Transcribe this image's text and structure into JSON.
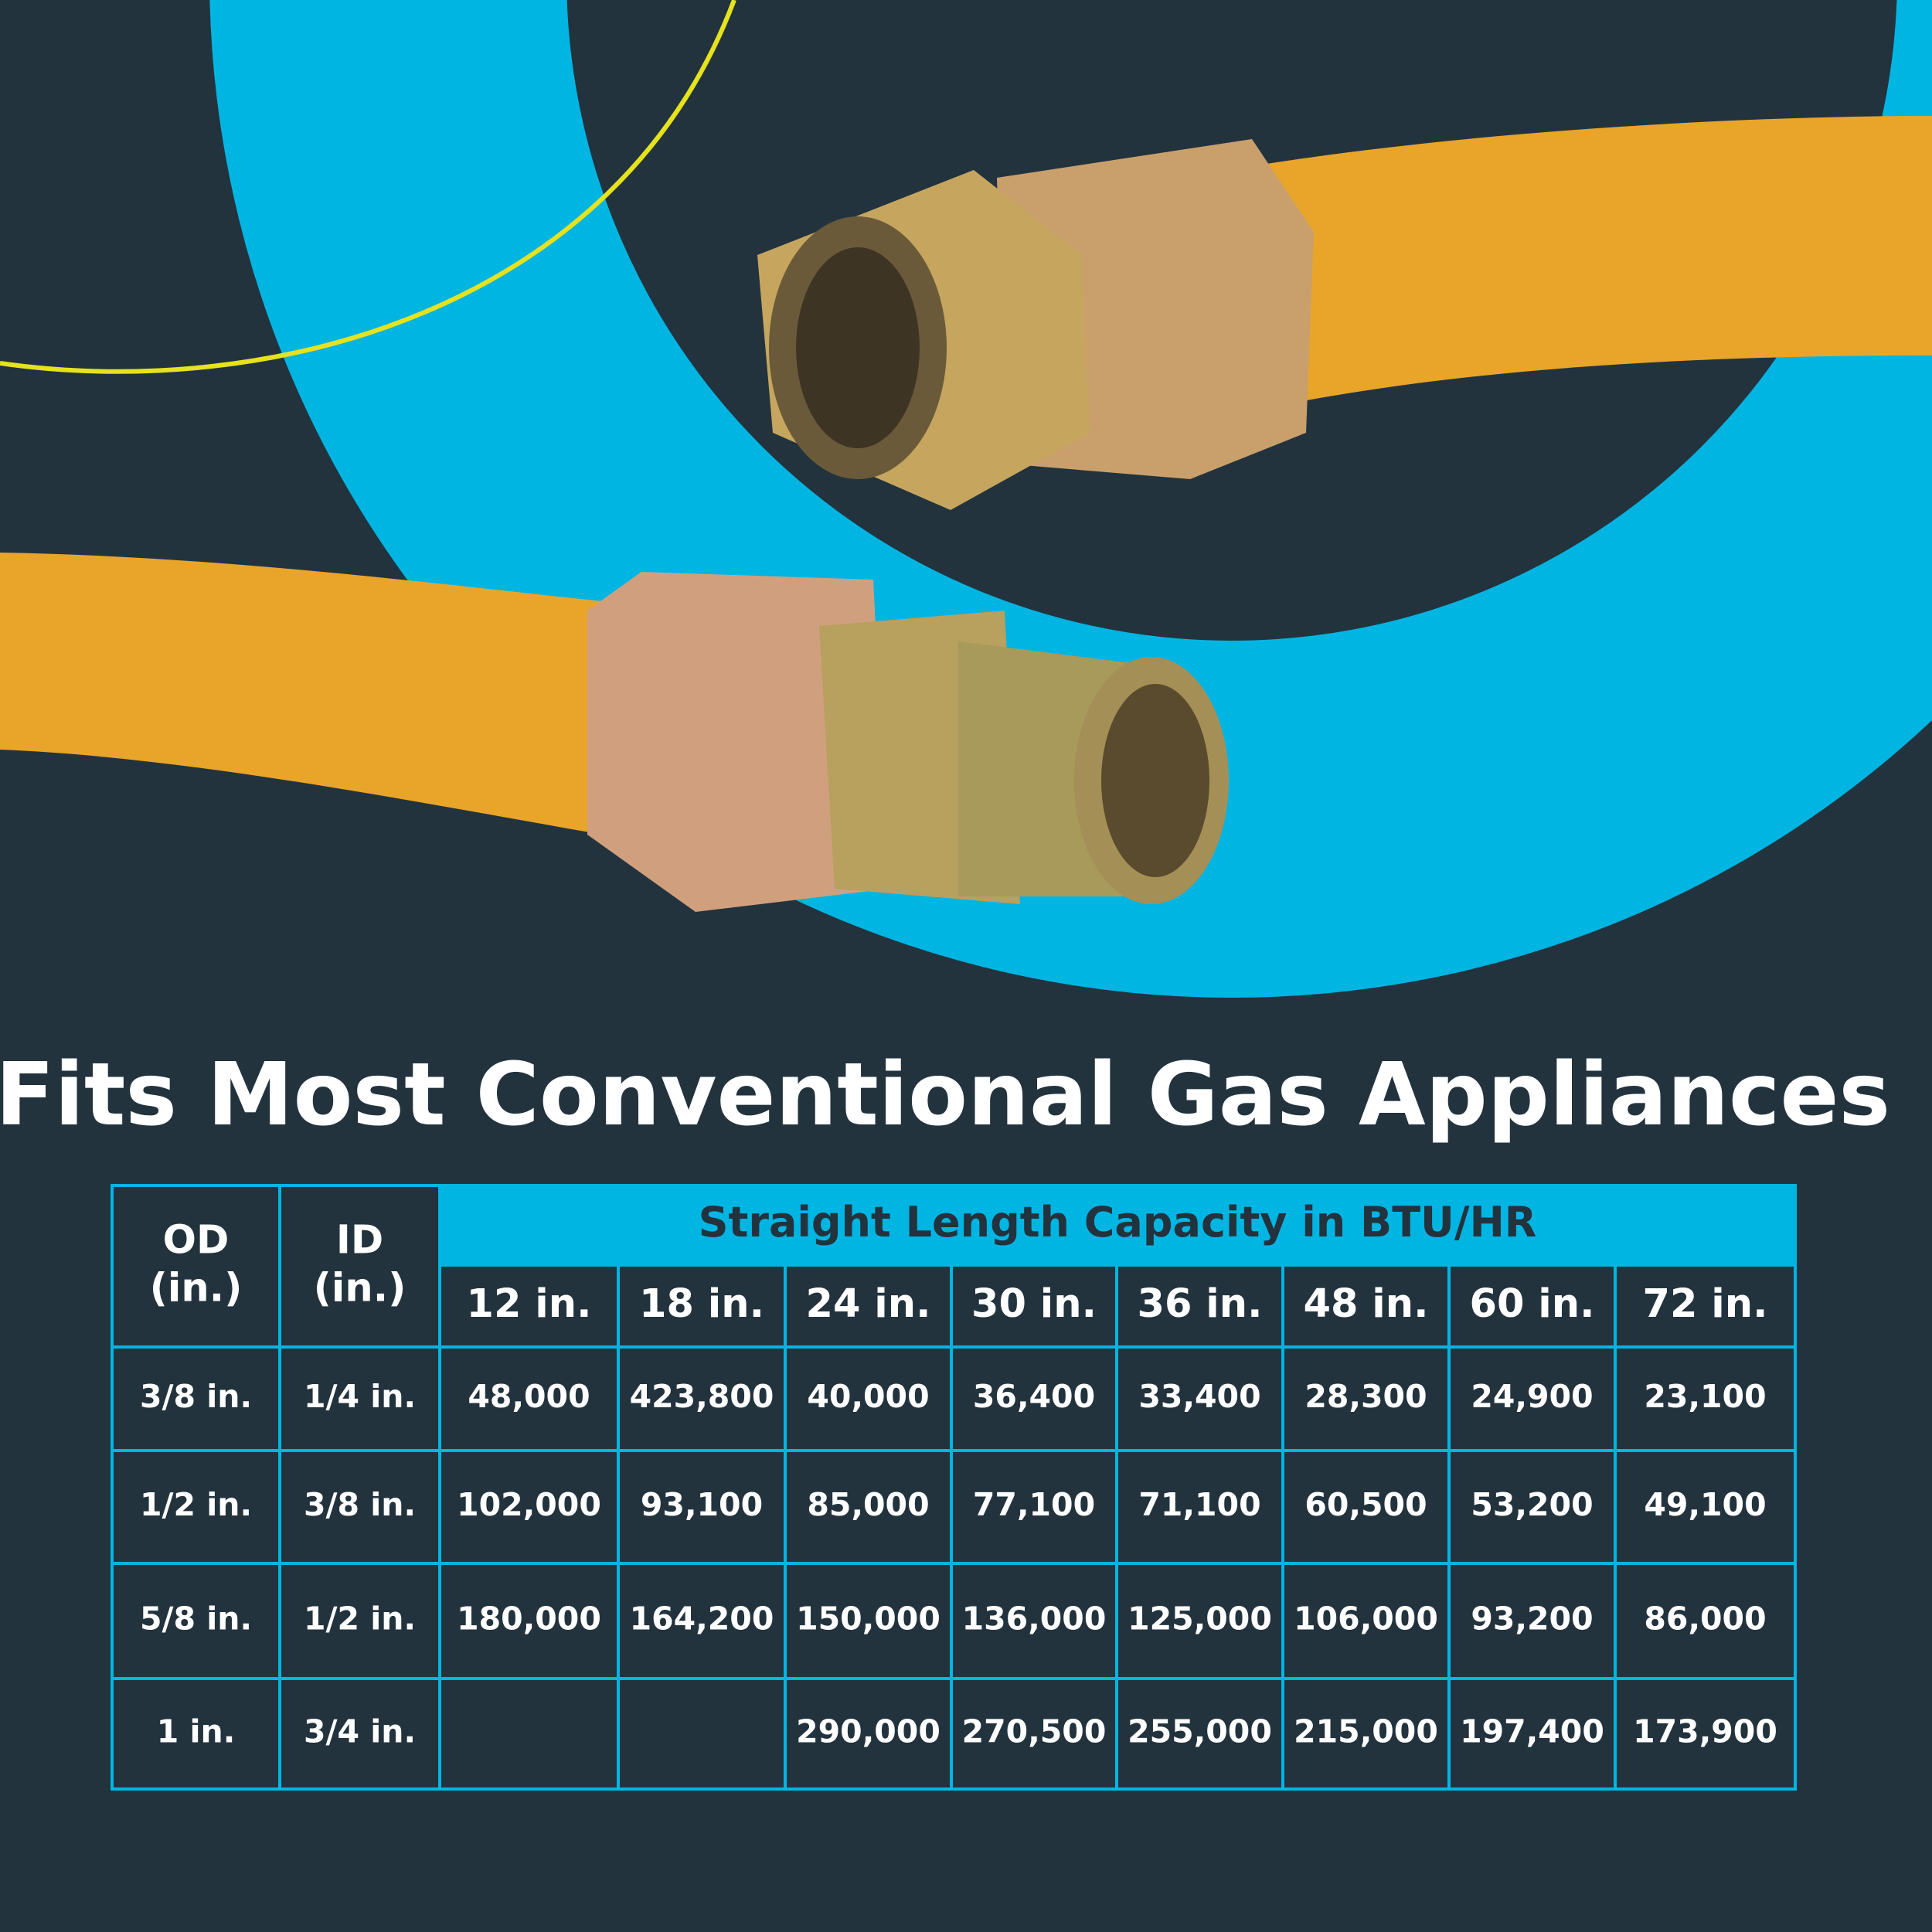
{
  "title": "Fits Most Conventional Gas Appliances",
  "table": {
    "row_headers": [
      {
        "lines": [
          "OD",
          "(in.)"
        ]
      },
      {
        "lines": [
          "ID",
          "(in.)"
        ]
      }
    ],
    "group_header": "Straight Length Capacity in BTU/HR",
    "lengths": [
      "12 in.",
      "18 in.",
      "24 in.",
      "30 in.",
      "36 in.",
      "48 in.",
      "60 in.",
      "72 in."
    ],
    "rows": [
      [
        "3/8 in.",
        "1/4 in.",
        "48,000",
        "423,800",
        "40,000",
        "36,400",
        "33,400",
        "28,300",
        "24,900",
        "23,100"
      ],
      [
        "1/2 in.",
        "3/8 in.",
        "102,000",
        "93,100",
        "85,000",
        "77,100",
        "71,100",
        "60,500",
        "53,200",
        "49,100"
      ],
      [
        "5/8 in.",
        "1/2 in.",
        "180,000",
        "164,200",
        "150,000",
        "136,000",
        "125,000",
        "106,000",
        "93,200",
        "86,000"
      ],
      [
        "1 in.",
        "3/4 in.",
        null,
        null,
        "290,000",
        "270,500",
        "255,000",
        "215,000",
        "197,400",
        "173,900"
      ]
    ]
  }
}
